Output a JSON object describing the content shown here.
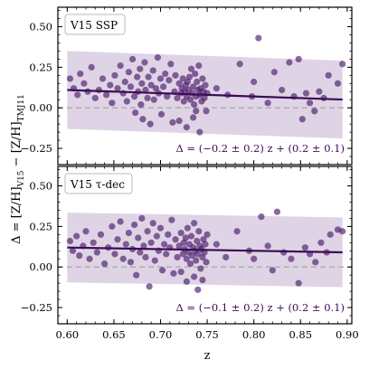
{
  "chart_data": {
    "type": "scatter",
    "x_label": "z",
    "y_label_main": "Δ = [Z/H]",
    "y_label_sub1": "V15",
    "y_label_mid": " − [Z/H]",
    "y_label_sub2": "TMJ11",
    "x_range": [
      0.59,
      0.905
    ],
    "x_ticks": [
      "0.60",
      "0.65",
      "0.70",
      "0.75",
      "0.80",
      "0.85",
      "0.90"
    ],
    "colors": {
      "points": "#4b1a6b",
      "fit_line": "#3a0c55",
      "band": "#d8cce0",
      "zero_line": "#aaaaaa",
      "annotation": "#3a0c55"
    },
    "panels": [
      {
        "label": "V15 SSP",
        "y_range": [
          -0.35,
          0.62
        ],
        "y_ticks": [
          "0.50",
          "0.25",
          "0.00",
          "−0.25"
        ],
        "y_tick_values": [
          0.5,
          0.25,
          0.0,
          -0.25
        ],
        "fit": {
          "slope": -0.2,
          "intercept": 0.23
        },
        "band_halfwidth_start": 0.24,
        "band_halfwidth_end": 0.24,
        "annotation": "Δ = (−0.2 ± 0.2) z + (0.2 ± 0.1)",
        "points": [
          [
            0.603,
            0.18
          ],
          [
            0.607,
            0.12
          ],
          [
            0.611,
            0.08
          ],
          [
            0.614,
            0.21
          ],
          [
            0.618,
            0.15
          ],
          [
            0.622,
            0.1
          ],
          [
            0.626,
            0.25
          ],
          [
            0.63,
            0.06
          ],
          [
            0.634,
            0.11
          ],
          [
            0.638,
            0.18
          ],
          [
            0.642,
            0.08
          ],
          [
            0.646,
            0.14
          ],
          [
            0.648,
            0.03
          ],
          [
            0.651,
            0.2
          ],
          [
            0.654,
            0.12
          ],
          [
            0.657,
            0.26
          ],
          [
            0.66,
            0.09
          ],
          [
            0.662,
            0.16
          ],
          [
            0.664,
            0.04
          ],
          [
            0.666,
            0.22
          ],
          [
            0.668,
            0.13
          ],
          [
            0.67,
            0.3
          ],
          [
            0.672,
            0.07
          ],
          [
            0.673,
            -0.03
          ],
          [
            0.675,
            0.19
          ],
          [
            0.676,
            0.1
          ],
          [
            0.678,
            0.24
          ],
          [
            0.679,
            0.02
          ],
          [
            0.68,
            0.15
          ],
          [
            0.681,
            -0.07
          ],
          [
            0.683,
            0.28
          ],
          [
            0.684,
            0.11
          ],
          [
            0.686,
            0.06
          ],
          [
            0.687,
            0.19
          ],
          [
            0.689,
            -0.1
          ],
          [
            0.69,
            0.14
          ],
          [
            0.692,
            0.23
          ],
          [
            0.693,
            0.05
          ],
          [
            0.695,
            0.12
          ],
          [
            0.697,
            0.31
          ],
          [
            0.698,
            0.09
          ],
          [
            0.7,
            0.18
          ],
          [
            0.701,
            -0.04
          ],
          [
            0.703,
            0.13
          ],
          [
            0.705,
            0.21
          ],
          [
            0.707,
            0.07
          ],
          [
            0.709,
            0.17
          ],
          [
            0.711,
            0.27
          ],
          [
            0.713,
            -0.09
          ],
          [
            0.715,
            0.1
          ],
          [
            0.716,
            0.2
          ],
          [
            0.718,
            0.06
          ],
          [
            0.72,
            0.15
          ],
          [
            0.722,
            0.09
          ],
          [
            0.723,
            0.12
          ],
          [
            0.724,
            0.18
          ],
          [
            0.725,
            0.04
          ],
          [
            0.726,
            0.1
          ],
          [
            0.727,
            0.14
          ],
          [
            0.728,
            0.07
          ],
          [
            0.729,
            0.16
          ],
          [
            0.73,
            0.11
          ],
          [
            0.731,
            0.19
          ],
          [
            0.732,
            0.05
          ],
          [
            0.733,
            0.24
          ],
          [
            0.734,
            0.09
          ],
          [
            0.735,
            0.13
          ],
          [
            0.736,
            0.02
          ],
          [
            0.737,
            0.21
          ],
          [
            0.738,
            0.07
          ],
          [
            0.739,
            0.16
          ],
          [
            0.74,
            0.11
          ],
          [
            0.741,
            0.26
          ],
          [
            0.742,
            0.08
          ],
          [
            0.743,
            0.12
          ],
          [
            0.744,
            0.04
          ],
          [
            0.745,
            0.18
          ],
          [
            0.746,
            0.1
          ],
          [
            0.747,
            0.06
          ],
          [
            0.748,
            0.14
          ],
          [
            0.749,
            -0.02
          ],
          [
            0.75,
            0.09
          ],
          [
            0.735,
            -0.06
          ],
          [
            0.728,
            -0.12
          ],
          [
            0.742,
            -0.15
          ],
          [
            0.72,
            -0.08
          ],
          [
            0.738,
            -0.02
          ],
          [
            0.76,
            0.12
          ],
          [
            0.772,
            0.08
          ],
          [
            0.785,
            0.27
          ],
          [
            0.798,
            0.07
          ],
          [
            0.8,
            0.16
          ],
          [
            0.805,
            0.43
          ],
          [
            0.815,
            0.03
          ],
          [
            0.822,
            0.22
          ],
          [
            0.83,
            0.11
          ],
          [
            0.838,
            0.28
          ],
          [
            0.843,
            0.07
          ],
          [
            0.848,
            0.3
          ],
          [
            0.852,
            -0.07
          ],
          [
            0.856,
            0.09
          ],
          [
            0.86,
            0.03
          ],
          [
            0.865,
            -0.02
          ],
          [
            0.87,
            0.1
          ],
          [
            0.875,
            0.06
          ],
          [
            0.88,
            0.2
          ],
          [
            0.895,
            0.27
          ],
          [
            0.89,
            0.15
          ]
        ]
      },
      {
        "label": "V15 τ-dec",
        "y_range": [
          -0.35,
          0.62
        ],
        "y_ticks": [
          "0.50",
          "0.25",
          "0.00",
          "−0.25"
        ],
        "y_tick_values": [
          0.5,
          0.25,
          0.0,
          -0.25
        ],
        "fit": {
          "slope": -0.1,
          "intercept": 0.18
        },
        "band_halfwidth_start": 0.215,
        "band_halfwidth_end": 0.215,
        "annotation": "Δ = (−0.1 ± 0.2) z + (0.2 ± 0.1)",
        "points": [
          [
            0.603,
            0.16
          ],
          [
            0.606,
            0.1
          ],
          [
            0.61,
            0.19
          ],
          [
            0.613,
            0.07
          ],
          [
            0.617,
            0.13
          ],
          [
            0.62,
            0.22
          ],
          [
            0.624,
            0.05
          ],
          [
            0.628,
            0.15
          ],
          [
            0.632,
            0.09
          ],
          [
            0.636,
            0.2
          ],
          [
            0.64,
            0.02
          ],
          [
            0.644,
            0.12
          ],
          [
            0.648,
            0.25
          ],
          [
            0.651,
            0.08
          ],
          [
            0.654,
            0.17
          ],
          [
            0.657,
            0.28
          ],
          [
            0.66,
            0.05
          ],
          [
            0.663,
            0.14
          ],
          [
            0.666,
            0.21
          ],
          [
            0.668,
            0.03
          ],
          [
            0.67,
            0.11
          ],
          [
            0.672,
            0.26
          ],
          [
            0.674,
            -0.05
          ],
          [
            0.676,
            0.18
          ],
          [
            0.678,
            0.09
          ],
          [
            0.68,
            0.3
          ],
          [
            0.682,
            0.13
          ],
          [
            0.684,
            0.06
          ],
          [
            0.686,
            0.22
          ],
          [
            0.688,
            -0.12
          ],
          [
            0.69,
            0.15
          ],
          [
            0.692,
            0.27
          ],
          [
            0.694,
            0.04
          ],
          [
            0.696,
            0.19
          ],
          [
            0.698,
            0.1
          ],
          [
            0.7,
            0.24
          ],
          [
            0.702,
            -0.02
          ],
          [
            0.704,
            0.14
          ],
          [
            0.706,
            0.08
          ],
          [
            0.708,
            0.2
          ],
          [
            0.71,
            0.12
          ],
          [
            0.712,
            0.29
          ],
          [
            0.714,
            -0.04
          ],
          [
            0.716,
            0.17
          ],
          [
            0.718,
            0.06
          ],
          [
            0.72,
            0.13
          ],
          [
            0.722,
            0.21
          ],
          [
            0.724,
            0.08
          ],
          [
            0.725,
            0.15
          ],
          [
            0.726,
            0.11
          ],
          [
            0.727,
            0.18
          ],
          [
            0.728,
            0.05
          ],
          [
            0.729,
            0.24
          ],
          [
            0.73,
            0.09
          ],
          [
            0.731,
            0.14
          ],
          [
            0.732,
            0.02
          ],
          [
            0.733,
            0.19
          ],
          [
            0.734,
            0.07
          ],
          [
            0.735,
            0.12
          ],
          [
            0.736,
            0.27
          ],
          [
            0.737,
            0.1
          ],
          [
            0.738,
            0.04
          ],
          [
            0.739,
            0.16
          ],
          [
            0.74,
            0.08
          ],
          [
            0.741,
            0.22
          ],
          [
            0.742,
            0.13
          ],
          [
            0.743,
            -0.01
          ],
          [
            0.744,
            0.11
          ],
          [
            0.745,
            0.06
          ],
          [
            0.746,
            0.17
          ],
          [
            0.747,
            0.09
          ],
          [
            0.748,
            0.14
          ],
          [
            0.749,
            0.03
          ],
          [
            0.75,
            0.2
          ],
          [
            0.736,
            -0.06
          ],
          [
            0.728,
            -0.09
          ],
          [
            0.74,
            -0.14
          ],
          [
            0.722,
            -0.03
          ],
          [
            0.745,
            -0.08
          ],
          [
            0.76,
            0.14
          ],
          [
            0.77,
            0.06
          ],
          [
            0.782,
            0.22
          ],
          [
            0.795,
            0.1
          ],
          [
            0.8,
            0.05
          ],
          [
            0.808,
            0.31
          ],
          [
            0.815,
            0.13
          ],
          [
            0.82,
            -0.02
          ],
          [
            0.825,
            0.34
          ],
          [
            0.832,
            0.09
          ],
          [
            0.84,
            0.05
          ],
          [
            0.848,
            -0.1
          ],
          [
            0.855,
            0.12
          ],
          [
            0.86,
            0.08
          ],
          [
            0.866,
            0.03
          ],
          [
            0.872,
            0.15
          ],
          [
            0.878,
            0.09
          ],
          [
            0.882,
            0.2
          ],
          [
            0.89,
            0.23
          ],
          [
            0.895,
            0.22
          ]
        ]
      }
    ]
  }
}
